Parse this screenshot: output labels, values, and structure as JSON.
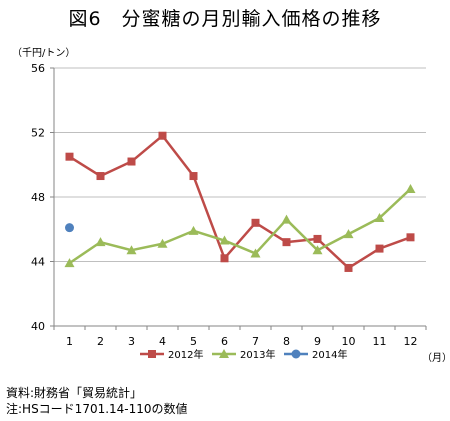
{
  "title": "図6　分蜜糖の月別輸入価格の推移",
  "unit_label": "（千円/トン）",
  "x_unit_label": "（月）",
  "source_line": "資料:財務省「貿易統計」",
  "note_line": "注:HSコード1701.14-110の数値",
  "colors": {
    "series_2012": "#be4b48",
    "series_2013": "#9bbb59",
    "series_2014": "#4f81bd",
    "grid": "#bfbfbf",
    "axis": "#868686"
  },
  "chart_data": {
    "type": "line",
    "categories": [
      "1",
      "2",
      "3",
      "4",
      "5",
      "6",
      "7",
      "8",
      "9",
      "10",
      "11",
      "12"
    ],
    "ylim": [
      40,
      56
    ],
    "yticks": [
      "40",
      "44",
      "48",
      "52",
      "56"
    ],
    "grid": true,
    "legend_position": "bottom",
    "series": [
      {
        "name": "2012年",
        "marker": "square",
        "values": [
          50.5,
          49.3,
          50.2,
          51.8,
          49.3,
          44.2,
          46.4,
          45.2,
          45.4,
          43.6,
          44.8,
          45.5
        ]
      },
      {
        "name": "2013年",
        "marker": "triangle",
        "values": [
          43.9,
          45.2,
          44.7,
          45.1,
          45.9,
          45.3,
          44.5,
          46.6,
          44.7,
          45.7,
          46.7,
          48.5
        ]
      },
      {
        "name": "2014年",
        "marker": "circle",
        "values": [
          46.1,
          null,
          null,
          null,
          null,
          null,
          null,
          null,
          null,
          null,
          null,
          null
        ]
      }
    ]
  }
}
